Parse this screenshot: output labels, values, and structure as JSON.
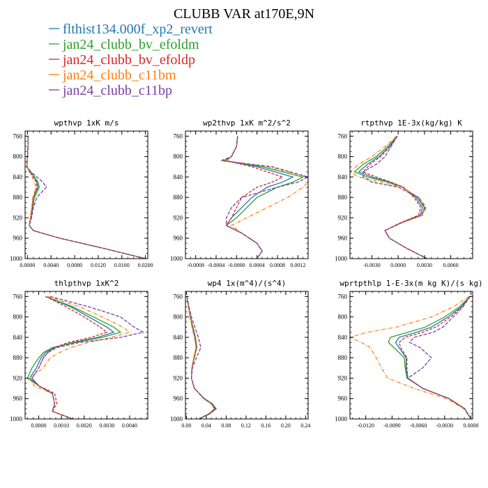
{
  "title": "CLUBB VAR at170E,9N",
  "legend": [
    {
      "name": "flthist134.000f_xp2_revert",
      "color": "#1f77b4"
    },
    {
      "name": "jan24_clubb_bv_efoldm",
      "color": "#2ca02c"
    },
    {
      "name": "jan24_clubb_bv_efoldp",
      "color": "#d62728"
    },
    {
      "name": "jan24_clubb_c11bm",
      "color": "#ff7f0e"
    },
    {
      "name": "jan24_clubb_c11bp",
      "color": "#7b3fa0"
    }
  ],
  "chart_data": [
    {
      "type": "line",
      "title": "wpthvp  1xK m/s",
      "ylim": [
        1000,
        750
      ],
      "yticks": [
        760,
        800,
        840,
        880,
        920,
        960,
        1000
      ],
      "xlim": [
        -0.0004,
        0.0204
      ],
      "xticks": [
        0.0,
        0.004,
        0.008,
        0.012,
        0.016,
        0.02
      ],
      "xticklabels": [
        "0.0000",
        "0.0040",
        "0.0080",
        "0.0120",
        "0.0160",
        "0.0200"
      ],
      "p": [
        760,
        780,
        800,
        820,
        830,
        840,
        850,
        860,
        870,
        880,
        900,
        920,
        935,
        945,
        960,
        980,
        1000
      ],
      "series": [
        {
          "values": [
            0.0001,
            0.0001,
            0.0,
            -0.0001,
            0.0005,
            0.0012,
            0.0016,
            0.0018,
            0.0014,
            0.001,
            0.0008,
            0.0006,
            0.0003,
            0.001,
            0.0055,
            0.013,
            0.02
          ]
        },
        {
          "values": [
            0.0001,
            0.0001,
            0.0,
            -0.0001,
            0.0005,
            0.0012,
            0.0018,
            0.002,
            0.0016,
            0.0012,
            0.0009,
            0.0006,
            0.0003,
            0.001,
            0.0055,
            0.013,
            0.02
          ]
        },
        {
          "values": [
            0.0001,
            0.0001,
            0.0,
            -0.0001,
            0.0004,
            0.001,
            0.0015,
            0.0016,
            0.0013,
            0.001,
            0.0008,
            0.0005,
            0.0003,
            0.001,
            0.0055,
            0.013,
            0.02
          ]
        },
        {
          "values": [
            0.0001,
            0.0001,
            0.0,
            -0.0001,
            0.0003,
            0.0008,
            0.0012,
            0.0014,
            0.0012,
            0.0009,
            0.0007,
            0.0005,
            0.0003,
            0.001,
            0.0055,
            0.013,
            0.02
          ]
        },
        {
          "values": [
            0.0001,
            0.0001,
            0.0,
            -0.0001,
            0.0006,
            0.0016,
            0.0026,
            0.0032,
            0.0024,
            0.0016,
            0.001,
            0.0007,
            0.0003,
            0.001,
            0.0055,
            0.013,
            0.02
          ]
        }
      ]
    },
    {
      "type": "line",
      "title": "wp2thvp  1xK m^2/s^2",
      "ylim": [
        1000,
        750
      ],
      "yticks": [
        760,
        800,
        840,
        880,
        920,
        960,
        1000
      ],
      "xlim": [
        -0.001,
        0.0014
      ],
      "xticks": [
        -0.0008,
        -0.0004,
        0.0,
        0.0004,
        0.0008,
        0.0012
      ],
      "xticklabels": [
        "-0.0008",
        "-0.0004",
        "-0.0000",
        "0.0004",
        "0.0008",
        "0.0012"
      ],
      "p": [
        760,
        780,
        800,
        808,
        820,
        840,
        850,
        860,
        880,
        900,
        920,
        935,
        950,
        970,
        985,
        1000
      ],
      "series": [
        {
          "values": [
            2e-05,
            0.0,
            -0.0001,
            -0.0002,
            0.0004,
            0.0011,
            0.0009,
            0.0006,
            0.0003,
            0.0001,
            -0.0001,
            -0.0002,
            0.0001,
            0.0004,
            0.0005,
            0.0004
          ]
        },
        {
          "values": [
            2e-05,
            0.0,
            -0.0001,
            -0.00025,
            0.0005,
            0.0013,
            0.0011,
            0.0008,
            0.0004,
            0.0002,
            0.0,
            -0.0002,
            0.0001,
            0.0004,
            0.0005,
            0.0004
          ]
        },
        {
          "values": [
            2e-05,
            0.0,
            -0.0001,
            -0.0002,
            0.0003,
            0.0009,
            0.0007,
            0.0004,
            0.0001,
            0.0,
            -0.0001,
            -0.0002,
            0.0001,
            0.0004,
            0.0005,
            0.0004
          ]
        },
        {
          "values": [
            2e-05,
            0.0,
            -0.0001,
            -0.0002,
            0.0006,
            0.0014,
            0.0014,
            0.0013,
            0.001,
            0.0006,
            0.0002,
            -0.0001,
            0.0001,
            0.0004,
            0.0005,
            0.0004
          ]
        },
        {
          "values": [
            2e-05,
            0.0,
            -0.0001,
            -0.0003,
            0.0007,
            0.0014,
            0.0012,
            0.0008,
            0.0001,
            -0.0001,
            -0.0002,
            -0.0002,
            0.0001,
            0.0004,
            0.0005,
            0.0004
          ]
        }
      ]
    },
    {
      "type": "line",
      "title": "rtpthvp  1E-3x(kg/kg) K",
      "ylim": [
        1000,
        750
      ],
      "yticks": [
        760,
        800,
        840,
        880,
        920,
        960,
        1000
      ],
      "xlim": [
        -0.0055,
        0.0085
      ],
      "xticks": [
        -0.003,
        0.0,
        0.003,
        0.006
      ],
      "xticklabels": [
        "-0.0030",
        "0.0000",
        "0.0030",
        "0.0060"
      ],
      "p": [
        760,
        780,
        800,
        815,
        830,
        840,
        850,
        860,
        880,
        900,
        915,
        930,
        945,
        960,
        980,
        1000
      ],
      "series": [
        {
          "values": [
            -0.0001,
            -0.001,
            -0.0022,
            -0.0035,
            -0.0045,
            -0.003,
            -0.001,
            0.0005,
            0.002,
            0.0028,
            0.0025,
            0.0003,
            -0.0015,
            -0.001,
            0.001,
            0.0033
          ]
        },
        {
          "values": [
            -0.0001,
            -0.0012,
            -0.0025,
            -0.004,
            -0.005,
            -0.0035,
            -0.0012,
            0.0005,
            0.0022,
            0.003,
            0.0027,
            0.0003,
            -0.0015,
            -0.001,
            0.001,
            0.0033
          ]
        },
        {
          "values": [
            -0.0001,
            -0.0009,
            -0.002,
            -0.0032,
            -0.004,
            -0.0025,
            -0.0008,
            0.0006,
            0.0018,
            0.0026,
            0.0023,
            0.0002,
            -0.0015,
            -0.001,
            0.001,
            0.0033
          ]
        },
        {
          "values": [
            -0.0002,
            -0.0015,
            -0.003,
            -0.0045,
            -0.0055,
            -0.0045,
            -0.002,
            0.0004,
            0.0024,
            0.0032,
            0.0028,
            0.0004,
            -0.0015,
            -0.001,
            0.001,
            0.0033
          ]
        },
        {
          "values": [
            -0.0001,
            -0.0008,
            -0.0015,
            -0.0025,
            -0.004,
            -0.004,
            -0.003,
            0.0,
            0.0023,
            0.0031,
            0.0026,
            0.0003,
            -0.0015,
            -0.001,
            0.001,
            0.0033
          ]
        }
      ]
    },
    {
      "type": "line",
      "title": "thlpthvp  1xK^2",
      "ylim": [
        1000,
        750
      ],
      "yticks": [
        760,
        800,
        840,
        880,
        920,
        960,
        1000
      ],
      "xlim": [
        -0.0006,
        0.0048
      ],
      "xticks": [
        0.0,
        0.001,
        0.002,
        0.003,
        0.004
      ],
      "xticklabels": [
        "0.0000",
        "0.0010",
        "0.0020",
        "0.0030",
        "0.0040"
      ],
      "p": [
        760,
        780,
        800,
        820,
        830,
        840,
        850,
        860,
        870,
        880,
        900,
        920,
        935,
        950,
        970,
        985,
        1000
      ],
      "series": [
        {
          "values": [
            0.0003,
            0.0014,
            0.0022,
            0.003,
            0.0033,
            0.0026,
            0.0015,
            0.0007,
            0.0003,
            0.0001,
            -0.0001,
            -0.0004,
            0.0,
            0.0006,
            0.0007,
            0.0006,
            0.0015
          ]
        },
        {
          "values": [
            0.0003,
            0.0015,
            0.0024,
            0.0033,
            0.0036,
            0.0028,
            0.0016,
            0.0006,
            0.0002,
            0.0,
            -0.0003,
            -0.0005,
            0.0,
            0.0006,
            0.0007,
            0.0006,
            0.0015
          ]
        },
        {
          "values": [
            0.0003,
            0.0012,
            0.002,
            0.0027,
            0.003,
            0.0023,
            0.0013,
            0.0007,
            0.0004,
            0.0002,
            0.0,
            -0.0003,
            0.0,
            0.0007,
            0.0008,
            0.0006,
            0.0015
          ]
        },
        {
          "values": [
            0.0004,
            0.0018,
            0.0028,
            0.0037,
            0.004,
            0.0032,
            0.0022,
            0.0014,
            0.0009,
            0.0005,
            0.0002,
            -0.0004,
            -0.0002,
            0.0006,
            0.0007,
            0.0006,
            0.0015
          ]
        },
        {
          "values": [
            0.0005,
            0.0022,
            0.0036,
            0.0042,
            0.0046,
            0.0036,
            0.0018,
            0.0008,
            0.0004,
            0.0002,
            0.0,
            -0.0003,
            0.0,
            0.0006,
            0.0007,
            0.0006,
            0.0015
          ]
        }
      ]
    },
    {
      "type": "line",
      "title": "wp4  1x(m^4)/(s^4)",
      "ylim": [
        1000,
        750
      ],
      "yticks": [
        760,
        800,
        840,
        880,
        920,
        960,
        1000
      ],
      "xlim": [
        -0.002,
        0.245
      ],
      "xticks": [
        0.0,
        0.04,
        0.08,
        0.12,
        0.16,
        0.2,
        0.24
      ],
      "xticklabels": [
        "0.00",
        "0.04",
        "0.08",
        "0.12",
        "0.16",
        "0.20",
        "0.24"
      ],
      "p": [
        760,
        780,
        800,
        820,
        840,
        860,
        880,
        900,
        920,
        940,
        960,
        970,
        980,
        990,
        1000
      ],
      "series": [
        {
          "values": [
            0.001,
            0.004,
            0.008,
            0.012,
            0.017,
            0.02,
            0.015,
            0.011,
            0.01,
            0.016,
            0.035,
            0.05,
            0.057,
            0.045,
            0.025
          ]
        },
        {
          "values": [
            0.001,
            0.004,
            0.008,
            0.013,
            0.018,
            0.021,
            0.016,
            0.011,
            0.01,
            0.016,
            0.036,
            0.052,
            0.06,
            0.047,
            0.025
          ]
        },
        {
          "values": [
            0.001,
            0.004,
            0.008,
            0.013,
            0.018,
            0.02,
            0.015,
            0.011,
            0.01,
            0.016,
            0.035,
            0.05,
            0.057,
            0.045,
            0.025
          ]
        },
        {
          "values": [
            0.001,
            0.004,
            0.007,
            0.011,
            0.016,
            0.019,
            0.015,
            0.011,
            0.01,
            0.016,
            0.035,
            0.05,
            0.056,
            0.045,
            0.025
          ]
        },
        {
          "values": [
            0.001,
            0.005,
            0.01,
            0.017,
            0.024,
            0.029,
            0.02,
            0.012,
            0.01,
            0.016,
            0.035,
            0.05,
            0.058,
            0.046,
            0.025
          ]
        }
      ]
    },
    {
      "type": "line",
      "title": "wprtpthlp  1-E-3x(m kg K)/(s kg)",
      "ylim": [
        1000,
        750
      ],
      "yticks": [
        760,
        800,
        840,
        880,
        920,
        960,
        1000
      ],
      "xlim": [
        -0.0138,
        0.0002
      ],
      "xticks": [
        -0.012,
        -0.009,
        -0.006,
        -0.003,
        0.0
      ],
      "xticklabels": [
        "-0.0120",
        "-0.0090",
        "-0.0060",
        "-0.0030",
        "0.0000"
      ],
      "p": [
        760,
        780,
        800,
        820,
        830,
        840,
        850,
        860,
        880,
        900,
        920,
        940,
        960,
        980,
        1000
      ],
      "series": [
        {
          "values": [
            -0.0001,
            -0.0011,
            -0.0026,
            -0.0045,
            -0.0062,
            -0.0082,
            -0.0086,
            -0.0082,
            -0.0074,
            -0.0074,
            -0.0072,
            -0.0055,
            -0.0025,
            -0.0007,
            0.0
          ]
        },
        {
          "values": [
            -0.0001,
            -0.0013,
            -0.003,
            -0.0052,
            -0.0072,
            -0.0092,
            -0.0094,
            -0.0088,
            -0.0076,
            -0.0075,
            -0.0073,
            -0.0055,
            -0.0025,
            -0.0007,
            0.0
          ]
        },
        {
          "values": [
            -0.0001,
            -0.001,
            -0.0023,
            -0.004,
            -0.0055,
            -0.0075,
            -0.0082,
            -0.008,
            -0.0073,
            -0.0073,
            -0.0072,
            -0.0055,
            -0.0025,
            -0.0007,
            0.0
          ]
        },
        {
          "values": [
            -0.0002,
            -0.002,
            -0.0045,
            -0.0085,
            -0.0118,
            -0.0138,
            -0.0125,
            -0.0115,
            -0.0108,
            -0.0102,
            -0.0095,
            -0.0065,
            -0.0028,
            -0.0008,
            0.0
          ]
        },
        {
          "values": [
            -0.0001,
            -0.0009,
            -0.002,
            -0.0032,
            -0.0043,
            -0.0065,
            -0.007,
            -0.0058,
            -0.0045,
            -0.0055,
            -0.0072,
            -0.0055,
            -0.0025,
            -0.0007,
            0.0
          ]
        }
      ]
    }
  ]
}
